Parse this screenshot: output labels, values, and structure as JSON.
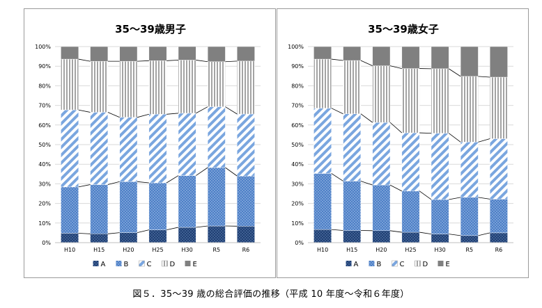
{
  "caption": "図５．35～39 歳の総合評価の推移（平成 10 年度～令和６年度）",
  "colors": {
    "A": "#1f3f73",
    "B": "#4d7fc6",
    "C": "#7aa6df",
    "D": "#a3a3a3",
    "E": "#808080"
  },
  "chart_data": [
    {
      "type": "bar",
      "stacked": "percent",
      "title": "35～39歳男子",
      "categories": [
        "H10",
        "H15",
        "H20",
        "H25",
        "H30",
        "R5",
        "R6"
      ],
      "y_ticks": [
        "0%",
        "10%",
        "20%",
        "30%",
        "40%",
        "50%",
        "60%",
        "70%",
        "80%",
        "90%",
        "100%"
      ],
      "ylim": [
        0,
        100
      ],
      "series": [
        {
          "name": "A",
          "values": [
            4.8,
            4.5,
            5.1,
            6.5,
            7.8,
            8.5,
            8.4
          ]
        },
        {
          "name": "B",
          "values": [
            23.6,
            25.1,
            26.0,
            24.0,
            26.4,
            29.8,
            25.6
          ]
        },
        {
          "name": "C",
          "values": [
            39.3,
            36.9,
            32.8,
            35.0,
            31.8,
            31.0,
            31.6
          ]
        },
        {
          "name": "D",
          "values": [
            25.9,
            26.0,
            28.6,
            27.3,
            27.1,
            23.0,
            27.0
          ]
        },
        {
          "name": "E",
          "values": [
            6.4,
            7.5,
            7.5,
            7.2,
            6.9,
            7.7,
            7.4
          ]
        }
      ],
      "legend": [
        "A",
        "B",
        "C",
        "D",
        "E"
      ],
      "legend_position": "bottom"
    },
    {
      "type": "bar",
      "stacked": "percent",
      "title": "35～39歳女子",
      "categories": [
        "H10",
        "H15",
        "H20",
        "H25",
        "H30",
        "R5",
        "R6"
      ],
      "y_ticks": [
        "0%",
        "10%",
        "20%",
        "30%",
        "40%",
        "50%",
        "60%",
        "70%",
        "80%",
        "90%",
        "100%"
      ],
      "ylim": [
        0,
        100
      ],
      "series": [
        {
          "name": "A",
          "values": [
            6.7,
            6.2,
            6.1,
            5.3,
            4.4,
            3.6,
            5.0
          ]
        },
        {
          "name": "B",
          "values": [
            28.6,
            25.2,
            23.3,
            21.0,
            17.6,
            19.5,
            17.2
          ]
        },
        {
          "name": "C",
          "values": [
            33.3,
            34.3,
            31.9,
            29.7,
            33.8,
            28.2,
            30.8
          ]
        },
        {
          "name": "D",
          "values": [
            25.0,
            27.2,
            28.9,
            32.8,
            32.9,
            33.5,
            31.4
          ]
        },
        {
          "name": "E",
          "values": [
            6.4,
            7.1,
            9.8,
            11.2,
            11.3,
            15.2,
            15.6
          ]
        }
      ],
      "legend": [
        "A",
        "B",
        "C",
        "D",
        "E"
      ],
      "legend_position": "bottom"
    }
  ]
}
